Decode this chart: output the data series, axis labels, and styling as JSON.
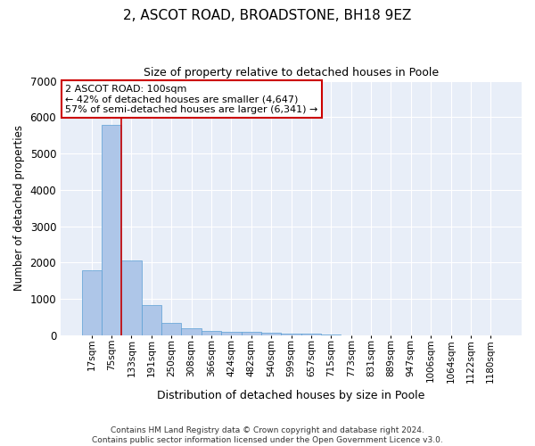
{
  "title": "2, ASCOT ROAD, BROADSTONE, BH18 9EZ",
  "subtitle": "Size of property relative to detached houses in Poole",
  "xlabel": "Distribution of detached houses by size in Poole",
  "ylabel": "Number of detached properties",
  "bar_color": "#aec6e8",
  "bar_edge_color": "#5a9fd4",
  "background_color": "#e8eef8",
  "grid_color": "#ffffff",
  "categories": [
    "17sqm",
    "75sqm",
    "133sqm",
    "191sqm",
    "250sqm",
    "308sqm",
    "366sqm",
    "424sqm",
    "482sqm",
    "540sqm",
    "599sqm",
    "657sqm",
    "715sqm",
    "773sqm",
    "831sqm",
    "889sqm",
    "947sqm",
    "1006sqm",
    "1064sqm",
    "1122sqm",
    "1180sqm"
  ],
  "values": [
    1780,
    5780,
    2060,
    820,
    345,
    185,
    115,
    95,
    80,
    60,
    55,
    40,
    30,
    0,
    0,
    0,
    0,
    0,
    0,
    0,
    0
  ],
  "red_line_x": 1.5,
  "annotation_line1": "2 ASCOT ROAD: 100sqm",
  "annotation_line2": "← 42% of detached houses are smaller (4,647)",
  "annotation_line3": "57% of semi-detached houses are larger (6,341) →",
  "annotation_box_color": "#ffffff",
  "annotation_border_color": "#cc0000",
  "ylim": [
    0,
    7000
  ],
  "yticks": [
    0,
    1000,
    2000,
    3000,
    4000,
    5000,
    6000,
    7000
  ],
  "footer_line1": "Contains HM Land Registry data © Crown copyright and database right 2024.",
  "footer_line2": "Contains public sector information licensed under the Open Government Licence v3.0."
}
